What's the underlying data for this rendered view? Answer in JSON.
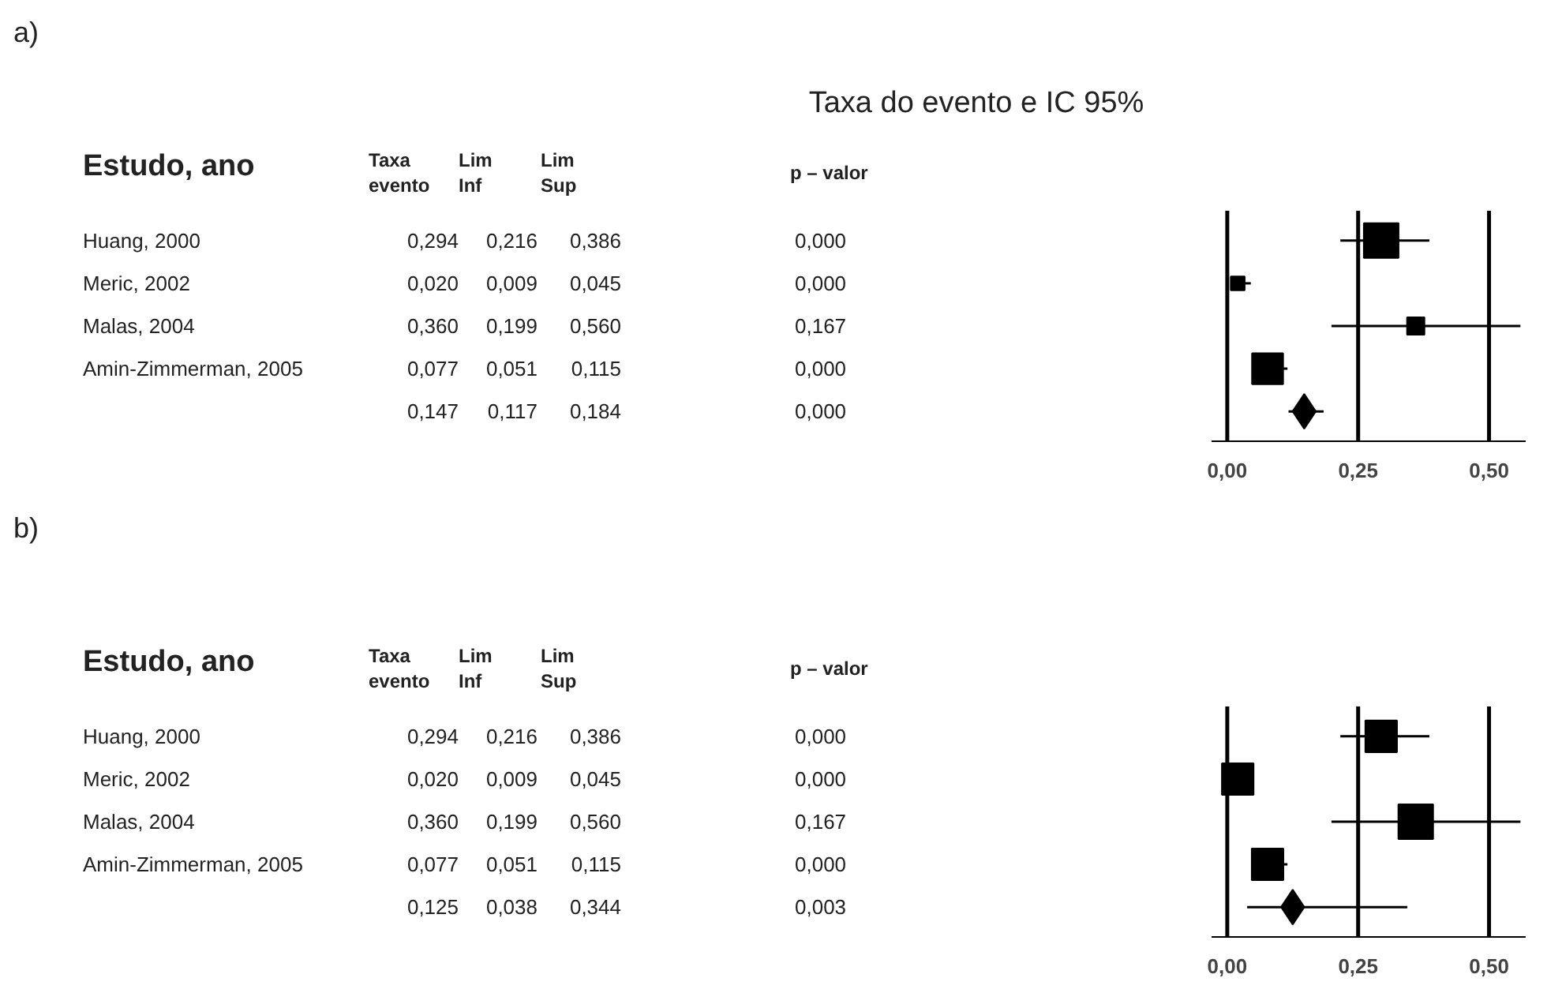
{
  "chart_data": [
    {
      "type": "scatter",
      "orientation": "horizontal",
      "title": "Taxa do evento e IC 95%",
      "categories": [
        "Huang, 2000",
        "Meric, 2002",
        "Malas, 2004",
        "Amin-Zimmerman, 2005",
        null
      ],
      "series": [
        {
          "color": "#000000",
          "marker": "square",
          "values": [
            0.294,
            0.02,
            0.36,
            0.077,
            null
          ],
          "sizes": [
            1,
            0.16,
            0.25,
            0.8,
            null
          ],
          "errors": [
            [
              0.216,
              0.386
            ],
            [
              0.009,
              0.045
            ],
            [
              0.199,
              0.56
            ],
            [
              0.051,
              0.115
            ],
            null
          ],
          "value_labels": [
            "0,294",
            "0,020",
            "0,360",
            "0,077",
            null
          ]
        },
        {
          "color": "#000000",
          "marker": "diamond",
          "values": [
            null,
            null,
            null,
            null,
            0.147
          ],
          "errors": [
            null,
            null,
            null,
            null,
            [
              0.117,
              0.184
            ]
          ]
        }
      ],
      "xlim": [
        -0.03,
        0.57
      ],
      "xticks": [
        {
          "value": 0,
          "label": "0,00"
        },
        {
          "value": 0.25,
          "label": "0,25"
        },
        {
          "value": 0.5,
          "label": "0,50"
        }
      ],
      "grid": "x",
      "tick_labels": "x",
      "annotations": [
        "a)",
        "Estudo, ano",
        "Taxa evento",
        "Lim Inf",
        "Lim Sup",
        "p – valor",
        "0,216",
        "0,386",
        "0,000",
        "0,009",
        "0,045",
        "0,000",
        "0,199",
        "0,560",
        "0,167",
        "0,051",
        "0,115",
        "0,000",
        "0,117",
        "0,184",
        "0,000",
        "0,147"
      ]
    },
    {
      "type": "scatter",
      "orientation": "horizontal",
      "categories": [
        "Huang, 2000",
        "Meric, 2002",
        "Malas, 2004",
        "Amin-Zimmerman, 2005",
        null
      ],
      "series": [
        {
          "color": "#000000",
          "marker": "square",
          "values": [
            0.294,
            0.02,
            0.36,
            0.077,
            null
          ],
          "sizes": [
            0.83,
            0.83,
            1,
            0.83,
            null
          ],
          "errors": [
            [
              0.216,
              0.386
            ],
            null,
            [
              0.199,
              0.56
            ],
            [
              0.051,
              0.115
            ],
            null
          ],
          "value_labels": [
            "0,294",
            "0,020",
            "0,360",
            "0,077",
            null
          ]
        },
        {
          "color": "#000000",
          "marker": "diamond",
          "values": [
            null,
            null,
            null,
            null,
            0.125
          ],
          "errors": [
            null,
            null,
            null,
            null,
            [
              0.038,
              0.344
            ]
          ]
        }
      ],
      "xlim": [
        -0.03,
        0.57
      ],
      "xticks": [
        {
          "value": 0,
          "label": "0,00"
        },
        {
          "value": 0.25,
          "label": "0,25"
        },
        {
          "value": 0.5,
          "label": "0,50"
        }
      ],
      "grid": "x",
      "tick_labels": "x",
      "annotations": [
        "b)",
        "Estudo, ano",
        "Taxa evento",
        "Lim Inf",
        "Lim Sup",
        "p – valor",
        "0,216",
        "0,386",
        "0,000",
        "0,009",
        "0,045",
        "0,000",
        "0,199",
        "0,560",
        "0,167",
        "0,051",
        "0,115",
        "0,000",
        "0,038",
        "0,344",
        "0,003",
        "0,125"
      ]
    }
  ]
}
